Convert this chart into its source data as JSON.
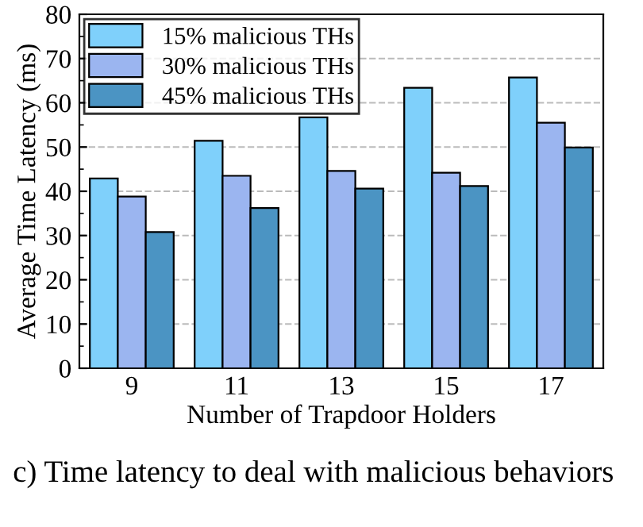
{
  "chart_data": {
    "type": "bar",
    "xlabel": "Number of Trapdoor Holders",
    "ylabel": "Average Time Latency (ms)",
    "categories": [
      "9",
      "11",
      "13",
      "15",
      "17"
    ],
    "series": [
      {
        "name": "15% malicious THs",
        "color": "#7fd0fb",
        "values": [
          42.9,
          51.4,
          56.7,
          63.4,
          65.7
        ]
      },
      {
        "name": "30% malicious THs",
        "color": "#9bb5f0",
        "values": [
          38.8,
          43.5,
          44.6,
          44.2,
          55.5
        ]
      },
      {
        "name": "45% malicious THs",
        "color": "#4b94c3",
        "values": [
          30.8,
          36.2,
          40.6,
          41.2,
          49.9
        ]
      }
    ],
    "ylim": [
      0,
      80
    ],
    "yticks": [
      0,
      10,
      20,
      30,
      40,
      50,
      60,
      70,
      80
    ],
    "grid": "y",
    "legend": "top left",
    "annotations": [
      "c) Time latency to deal with malicious behaviors"
    ]
  }
}
